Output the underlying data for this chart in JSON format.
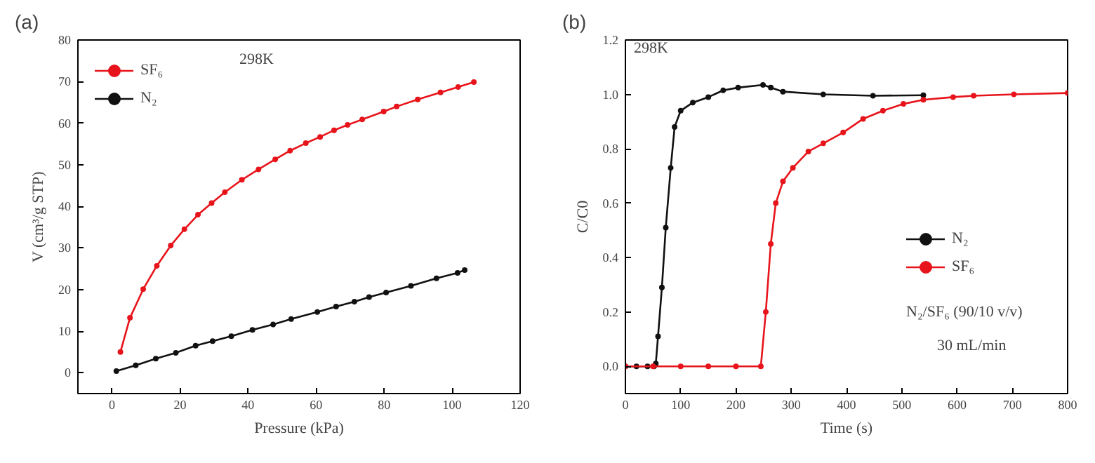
{
  "chart_data": [
    {
      "type": "line",
      "title": "(a)",
      "xlabel": "Pressure (kPa)",
      "ylabel": "V (cm³/g STP)",
      "xlim": [
        -10,
        120
      ],
      "ylim": [
        -5,
        80
      ],
      "xticks": [
        0,
        20,
        40,
        60,
        80,
        100,
        120
      ],
      "yticks": [
        0,
        10,
        20,
        30,
        40,
        50,
        60,
        70,
        80
      ],
      "grid": false,
      "legend": "top left",
      "marker": "circle",
      "line_style": "solid",
      "annotations": [
        "298K"
      ],
      "series": [
        {
          "name": "SF₆",
          "color": "#e8141b",
          "x": [
            2.5,
            5.3,
            9.2,
            13.2,
            17.3,
            21.3,
            25.3,
            29.3,
            33.2,
            38.2,
            43.1,
            48,
            52.4,
            57,
            61.2,
            65.3,
            69.3,
            73.6,
            79.9,
            83.7,
            89.9,
            96.6,
            101.8,
            106.4
          ],
          "values": [
            5.0,
            13.2,
            20.1,
            25.7,
            30.6,
            34.5,
            38.0,
            40.8,
            43.4,
            46.4,
            48.9,
            51.3,
            53.4,
            55.2,
            56.7,
            58.3,
            59.6,
            60.9,
            62.8,
            64.0,
            65.7,
            67.4,
            68.7,
            69.9
          ]
        },
        {
          "name": "N₂",
          "color": "#111111",
          "x": [
            1.3,
            7,
            12.9,
            18.8,
            24.6,
            29.6,
            35.1,
            41.3,
            47.4,
            52.7,
            60.4,
            65.9,
            71.3,
            75.6,
            80.6,
            87.9,
            95.4,
            101.6,
            103.7
          ],
          "values": [
            0.4,
            1.8,
            3.4,
            4.8,
            6.5,
            7.6,
            8.8,
            10.3,
            11.6,
            12.9,
            14.6,
            15.9,
            17.1,
            18.2,
            19.3,
            20.9,
            22.7,
            24.0,
            24.7
          ]
        }
      ]
    },
    {
      "type": "line",
      "title": "(b)",
      "xlabel": "Time (s)",
      "ylabel": "C/C0",
      "xlim": [
        0,
        800
      ],
      "ylim": [
        -0.1,
        1.2
      ],
      "xticks": [
        0,
        100,
        200,
        300,
        400,
        500,
        600,
        700,
        800
      ],
      "yticks": [
        {
          "value": 0,
          "label": "0.0"
        },
        {
          "value": 0.2,
          "label": "0.2"
        },
        {
          "value": 0.4,
          "label": "0.4"
        },
        {
          "value": 0.6,
          "label": "0.6"
        },
        {
          "value": 0.8,
          "label": "0.8"
        },
        {
          "value": 1,
          "label": "1.0"
        },
        {
          "value": 1.2,
          "label": "1.2"
        }
      ],
      "grid": false,
      "legend": "bottom right",
      "marker": "circle",
      "line_style": "solid",
      "annotations": [
        "298K",
        "N₂/SF₆ (90/10 v/v)",
        "30 mL/min"
      ],
      "series": [
        {
          "name": "N₂",
          "color": "#111111",
          "x": [
            0,
            20,
            40,
            52,
            55,
            59,
            66,
            73,
            82,
            89,
            100,
            122,
            150,
            177,
            204,
            249,
            263,
            285,
            358,
            448,
            539
          ],
          "values": [
            0,
            0,
            0,
            0,
            0.01,
            0.11,
            0.29,
            0.51,
            0.73,
            0.88,
            0.94,
            0.97,
            0.99,
            1.015,
            1.025,
            1.035,
            1.025,
            1.01,
            1.0,
            0.995,
            0.997
          ]
        },
        {
          "name": "SF₆",
          "color": "#e8141b",
          "x": [
            0,
            50,
            100,
            150,
            200,
            245,
            254,
            263,
            272,
            285,
            303,
            331,
            358,
            394,
            430,
            466,
            503,
            539,
            593,
            630,
            703,
            800
          ],
          "values": [
            0,
            0,
            0,
            0,
            0,
            0,
            0.2,
            0.45,
            0.6,
            0.68,
            0.73,
            0.79,
            0.82,
            0.86,
            0.91,
            0.94,
            0.965,
            0.98,
            0.99,
            0.995,
            1.0,
            1.005
          ]
        }
      ]
    }
  ]
}
